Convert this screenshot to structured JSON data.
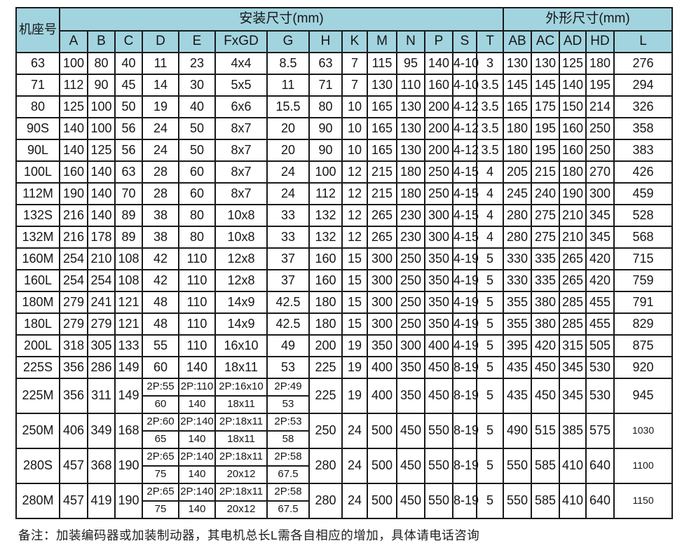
{
  "table": {
    "frame_col_label": "机座号",
    "mount_group_label": "安装尺寸(mm)",
    "outline_group_label": "外形尺寸(mm)",
    "mount_columns": [
      "A",
      "B",
      "C",
      "D",
      "E",
      "FxGD",
      "G",
      "H",
      "K",
      "M",
      "N",
      "P",
      "S",
      "T"
    ],
    "outline_columns": [
      "AB",
      "AC",
      "AD",
      "HD",
      "L"
    ],
    "rows": [
      {
        "frame": "63",
        "abc": [
          "100",
          "80",
          "40"
        ],
        "defg": [
          "11",
          "23",
          "4x4",
          "8.5"
        ],
        "rest": [
          "63",
          "7",
          "115",
          "95",
          "140",
          "4-10",
          "3",
          "130",
          "130",
          "125",
          "180",
          "276"
        ]
      },
      {
        "frame": "71",
        "abc": [
          "112",
          "90",
          "45"
        ],
        "defg": [
          "14",
          "30",
          "5x5",
          "11"
        ],
        "rest": [
          "71",
          "7",
          "130",
          "110",
          "160",
          "4-10",
          "3.5",
          "145",
          "145",
          "140",
          "195",
          "294"
        ]
      },
      {
        "frame": "80",
        "abc": [
          "125",
          "100",
          "50"
        ],
        "defg": [
          "19",
          "40",
          "6x6",
          "15.5"
        ],
        "rest": [
          "80",
          "10",
          "165",
          "130",
          "200",
          "4-12",
          "3.5",
          "165",
          "175",
          "150",
          "214",
          "326"
        ]
      },
      {
        "frame": "90S",
        "abc": [
          "140",
          "100",
          "56"
        ],
        "defg": [
          "24",
          "50",
          "8x7",
          "20"
        ],
        "rest": [
          "90",
          "10",
          "165",
          "130",
          "200",
          "4-12",
          "3.5",
          "180",
          "195",
          "160",
          "250",
          "358"
        ]
      },
      {
        "frame": "90L",
        "abc": [
          "140",
          "125",
          "56"
        ],
        "defg": [
          "24",
          "50",
          "8x7",
          "20"
        ],
        "rest": [
          "90",
          "10",
          "165",
          "130",
          "200",
          "4-12",
          "3.5",
          "180",
          "195",
          "160",
          "250",
          "383"
        ]
      },
      {
        "frame": "100L",
        "abc": [
          "160",
          "140",
          "63"
        ],
        "defg": [
          "28",
          "60",
          "8x7",
          "24"
        ],
        "rest": [
          "100",
          "12",
          "215",
          "180",
          "250",
          "4-15",
          "4",
          "205",
          "215",
          "180",
          "270",
          "426"
        ]
      },
      {
        "frame": "112M",
        "abc": [
          "190",
          "140",
          "70"
        ],
        "defg": [
          "28",
          "60",
          "8x7",
          "24"
        ],
        "rest": [
          "112",
          "12",
          "215",
          "180",
          "250",
          "4-15",
          "4",
          "245",
          "240",
          "190",
          "300",
          "459"
        ]
      },
      {
        "frame": "132S",
        "abc": [
          "216",
          "140",
          "89"
        ],
        "defg": [
          "38",
          "80",
          "10x8",
          "33"
        ],
        "rest": [
          "132",
          "12",
          "265",
          "230",
          "300",
          "4-15",
          "4",
          "280",
          "275",
          "210",
          "345",
          "528"
        ]
      },
      {
        "frame": "132M",
        "abc": [
          "216",
          "178",
          "89"
        ],
        "defg": [
          "38",
          "80",
          "10x8",
          "33"
        ],
        "rest": [
          "132",
          "12",
          "265",
          "230",
          "300",
          "4-15",
          "4",
          "280",
          "275",
          "210",
          "345",
          "568"
        ]
      },
      {
        "frame": "160M",
        "abc": [
          "254",
          "210",
          "108"
        ],
        "defg": [
          "42",
          "110",
          "12x8",
          "37"
        ],
        "rest": [
          "160",
          "15",
          "300",
          "250",
          "350",
          "4-19",
          "5",
          "330",
          "335",
          "265",
          "420",
          "715"
        ]
      },
      {
        "frame": "160L",
        "abc": [
          "254",
          "254",
          "108"
        ],
        "defg": [
          "42",
          "110",
          "12x8",
          "37"
        ],
        "rest": [
          "160",
          "15",
          "300",
          "250",
          "350",
          "4-19",
          "5",
          "330",
          "335",
          "265",
          "420",
          "759"
        ]
      },
      {
        "frame": "180M",
        "abc": [
          "279",
          "241",
          "121"
        ],
        "defg": [
          "48",
          "110",
          "14x9",
          "42.5"
        ],
        "rest": [
          "180",
          "15",
          "300",
          "250",
          "350",
          "4-19",
          "5",
          "355",
          "380",
          "285",
          "455",
          "791"
        ]
      },
      {
        "frame": "180L",
        "abc": [
          "279",
          "279",
          "121"
        ],
        "defg": [
          "48",
          "110",
          "14x9",
          "42.5"
        ],
        "rest": [
          "180",
          "15",
          "300",
          "250",
          "350",
          "4-19",
          "5",
          "355",
          "380",
          "285",
          "455",
          "829"
        ]
      },
      {
        "frame": "200L",
        "abc": [
          "318",
          "305",
          "133"
        ],
        "defg": [
          "55",
          "110",
          "16x10",
          "49"
        ],
        "rest": [
          "200",
          "19",
          "350",
          "300",
          "400",
          "4-19",
          "5",
          "395",
          "420",
          "315",
          "505",
          "875"
        ]
      },
      {
        "frame": "225S",
        "abc": [
          "356",
          "286",
          "149"
        ],
        "defg": [
          "60",
          "140",
          "18x11",
          "53"
        ],
        "rest": [
          "225",
          "19",
          "400",
          "350",
          "450",
          "8-19",
          "5",
          "435",
          "450",
          "345",
          "530",
          "920"
        ]
      },
      {
        "frame": "225M",
        "abc": [
          "356",
          "311",
          "149"
        ],
        "defg_2p": [
          "2P:55",
          "2P:110",
          "2P:16x10",
          "2P:49"
        ],
        "defg": [
          "60",
          "140",
          "18x11",
          "53"
        ],
        "rest": [
          "225",
          "19",
          "400",
          "350",
          "450",
          "8-19",
          "5",
          "435",
          "450",
          "345",
          "530",
          "945"
        ]
      },
      {
        "frame": "250M",
        "abc": [
          "406",
          "349",
          "168"
        ],
        "defg_2p": [
          "2P:60",
          "2P:140",
          "2P:18x11",
          "2P:53"
        ],
        "defg": [
          "65",
          "140",
          "18x11",
          "58"
        ],
        "rest": [
          "250",
          "24",
          "500",
          "450",
          "550",
          "8-19",
          "5",
          "490",
          "515",
          "385",
          "575",
          "1030"
        ]
      },
      {
        "frame": "280S",
        "abc": [
          "457",
          "368",
          "190"
        ],
        "defg_2p": [
          "2P:65",
          "2P:140",
          "2P:18x11",
          "2P:58"
        ],
        "defg": [
          "75",
          "140",
          "20x12",
          "67.5"
        ],
        "rest": [
          "280",
          "24",
          "500",
          "450",
          "550",
          "8-19",
          "5",
          "550",
          "585",
          "410",
          "640",
          "1100"
        ]
      },
      {
        "frame": "280M",
        "abc": [
          "457",
          "419",
          "190"
        ],
        "defg_2p": [
          "2P:65",
          "2P:140",
          "2P:18x11",
          "2P:58"
        ],
        "defg": [
          "75",
          "140",
          "20x12",
          "67.5"
        ],
        "rest": [
          "280",
          "24",
          "500",
          "450",
          "550",
          "8-19",
          "5",
          "550",
          "585",
          "410",
          "640",
          "1150"
        ]
      }
    ]
  },
  "note": "备注：加装编码器或加装制动器，其电机总长L需各自相应的增加，具体请电话咨询",
  "colors": {
    "header_bg": "#a2d4df",
    "border": "#1a1a1a",
    "text": "#161616"
  }
}
